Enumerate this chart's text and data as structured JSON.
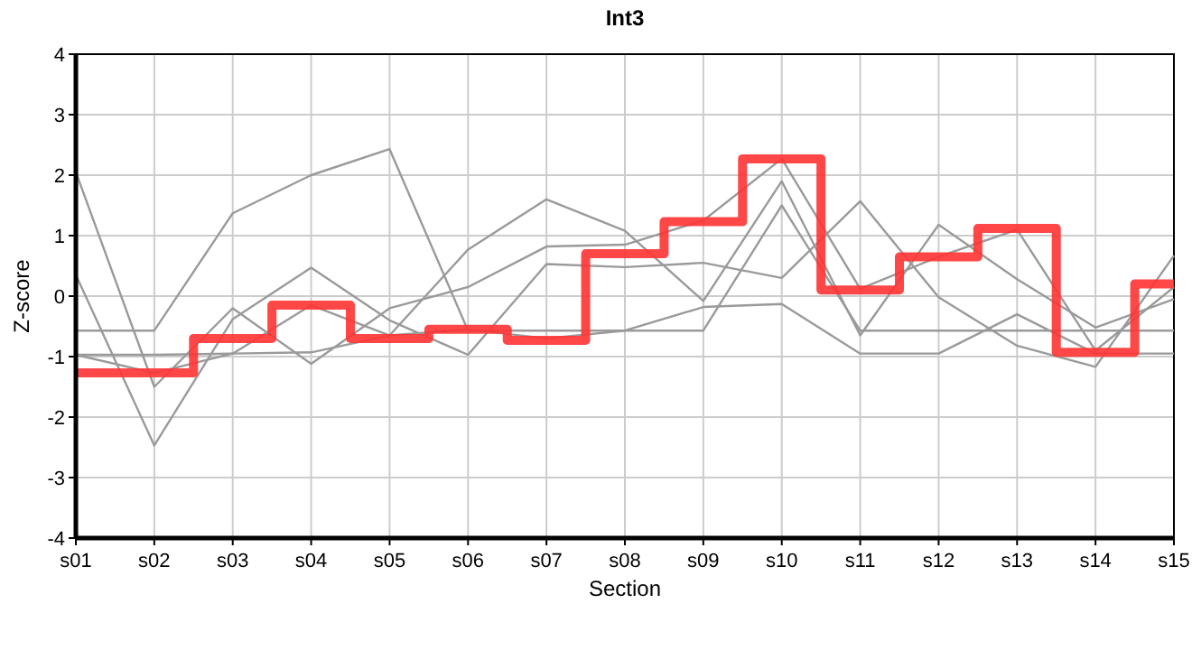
{
  "chart_data": {
    "type": "line",
    "title": "Int3",
    "xlabel": "Section",
    "ylabel": "Z-score",
    "categories": [
      "s01",
      "s02",
      "s03",
      "s04",
      "s05",
      "s06",
      "s07",
      "s08",
      "s09",
      "s10",
      "s11",
      "s12",
      "s13",
      "s14",
      "s15"
    ],
    "ylim": [
      -4,
      4
    ],
    "yticks": [
      -4,
      -3,
      -2,
      -1,
      0,
      1,
      2,
      3,
      4
    ],
    "grid": true,
    "series": [
      {
        "color": "#9a9a9a",
        "values": [
          2.05,
          -1.5,
          -0.2,
          -1.12,
          -0.2,
          0.15,
          0.82,
          0.85,
          1.25,
          2.27,
          0.12,
          0.65,
          1.1,
          -0.9,
          0.15
        ]
      },
      {
        "color": "#9a9a9a",
        "values": [
          0.35,
          -2.47,
          -0.38,
          0.47,
          -0.4,
          -0.97,
          0.53,
          0.48,
          0.55,
          0.3,
          1.57,
          -0.02,
          -0.82,
          -1.17,
          0.67
        ]
      },
      {
        "color": "#9a9a9a",
        "values": [
          -0.97,
          -1.27,
          -0.95,
          -0.15,
          -0.65,
          0.77,
          1.6,
          1.08,
          -0.08,
          1.9,
          -0.65,
          1.18,
          0.28,
          -0.52,
          -0.05
        ]
      },
      {
        "color": "#9a9a9a",
        "values": [
          -0.97,
          -0.97,
          -0.95,
          -0.93,
          -0.65,
          -0.55,
          -0.7,
          -0.57,
          -0.18,
          -0.13,
          -0.95,
          -0.95,
          -0.3,
          -0.95,
          -0.95
        ]
      },
      {
        "color": "#9a9a9a",
        "values": [
          -0.57,
          -0.57,
          1.37,
          2.0,
          2.43,
          -0.57,
          -0.57,
          -0.57,
          -0.57,
          1.5,
          -0.57,
          -0.57,
          -0.57,
          -0.57,
          -0.57
        ]
      },
      {
        "type": "step",
        "color": "#ff3333",
        "values": [
          -1.27,
          -1.27,
          -0.7,
          -0.15,
          -0.7,
          -0.55,
          -0.73,
          0.7,
          1.23,
          2.27,
          0.1,
          0.65,
          1.12,
          -0.93,
          0.2
        ]
      }
    ]
  }
}
